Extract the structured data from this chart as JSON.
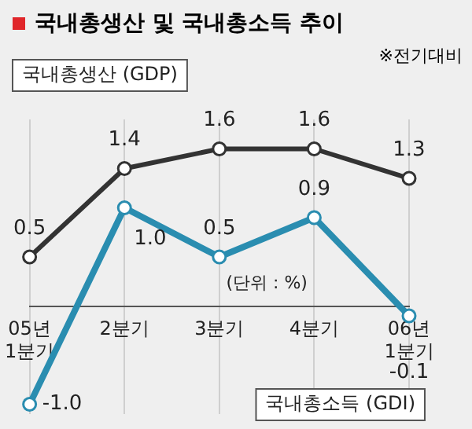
{
  "chart_data": {
    "type": "line",
    "title": "국내총생산 및 국내총소득 추이",
    "subtitle": "※전기대비",
    "annotations": [
      "(단위 : %)"
    ],
    "categories": [
      "05년\n1분기",
      "2분기",
      "3분기",
      "4분기",
      "06년\n1분기"
    ],
    "series": [
      {
        "name": "국내총생산 (GDP)",
        "color": "#333333",
        "values": [
          0.5,
          1.4,
          1.6,
          1.6,
          1.3
        ],
        "value_labels": [
          "0.5",
          "1.4",
          "1.6",
          "1.6",
          "1.3"
        ]
      },
      {
        "name": "국내총소득 (GDI)",
        "color": "#2a8db0",
        "values": [
          -1.0,
          1.0,
          0.5,
          0.9,
          -0.1
        ],
        "value_labels": [
          "-1.0",
          "1.0",
          "0.5",
          "0.9",
          "-0.1"
        ]
      }
    ],
    "ylim": [
      -1.1,
      1.9
    ],
    "tick_labels": "x",
    "grid": "x",
    "legend": false,
    "marker": "circle",
    "line_style": "solid"
  }
}
